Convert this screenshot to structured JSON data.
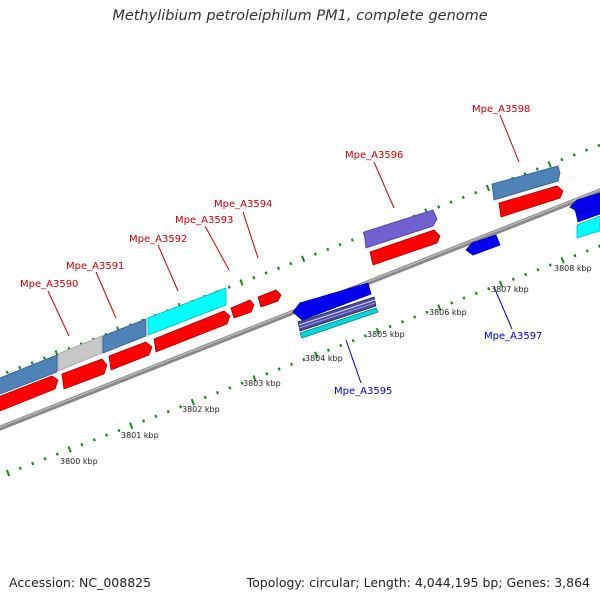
{
  "title": "Methylibium petroleiphilum PM1, complete genome",
  "footer": {
    "accession": "Accession: NC_008825",
    "summary": "Topology: circular; Length: 4,044,195 bp; Genes: 3,864"
  },
  "colors": {
    "forward_label": "#cc0000",
    "reverse_label": "#0000cc",
    "cds_red": "#ff0000",
    "cds_blue": "#0000ee",
    "steelblue": "#4f83b8",
    "grey": "#c8c8c8",
    "cyan": "#00ffff",
    "violet": "#7060d0",
    "backbone": "#888888",
    "tick": "#1a8a1a"
  },
  "kbp_ticks": [
    "3800 kbp",
    "3801 kbp",
    "3802 kbp",
    "3803 kbp",
    "3804 kbp",
    "3805 kbp",
    "3806 kbp",
    "3807 kbp",
    "3808 kbp"
  ],
  "forward_labels": [
    "Mpe_A3590",
    "Mpe_A3591",
    "Mpe_A3592",
    "Mpe_A3593",
    "Mpe_A3594",
    "Mpe_A3596",
    "Mpe_A3598"
  ],
  "reverse_labels": [
    "Mpe_A3595",
    "Mpe_A3597"
  ]
}
